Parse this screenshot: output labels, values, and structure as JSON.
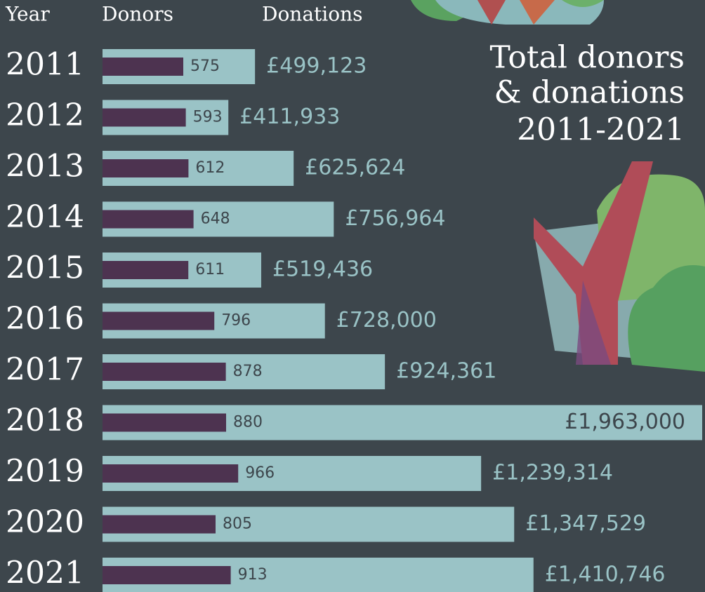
{
  "chart_data": {
    "type": "bar",
    "orientation": "horizontal",
    "title_lines": [
      "Total donors",
      "& donations",
      "2011-2021"
    ],
    "category_header": "Year",
    "categories": [
      "2011",
      "2012",
      "2013",
      "2014",
      "2015",
      "2016",
      "2017",
      "2018",
      "2019",
      "2020",
      "2021"
    ],
    "series": [
      {
        "name": "Donors",
        "color": "#4d3350",
        "axis": "x2",
        "values": [
          575,
          593,
          612,
          648,
          611,
          796,
          878,
          880,
          966,
          805,
          913
        ]
      },
      {
        "name": "Donations",
        "color": "#9ac3c6",
        "values": [
          499123,
          411933,
          625624,
          756964,
          519436,
          728000,
          924361,
          1963000,
          1239314,
          1347529,
          1410746
        ],
        "value_labels": [
          "£499,123",
          "£411,933",
          "£625,624",
          "£756,964",
          "£519,436",
          "£728,000",
          "£924,361",
          "£1,963,000",
          "£1,239,314",
          "£1,347,529",
          "£1,410,746"
        ]
      }
    ],
    "xlim": [
      0,
      1963000
    ],
    "x2lim": [
      0,
      4270
    ]
  }
}
